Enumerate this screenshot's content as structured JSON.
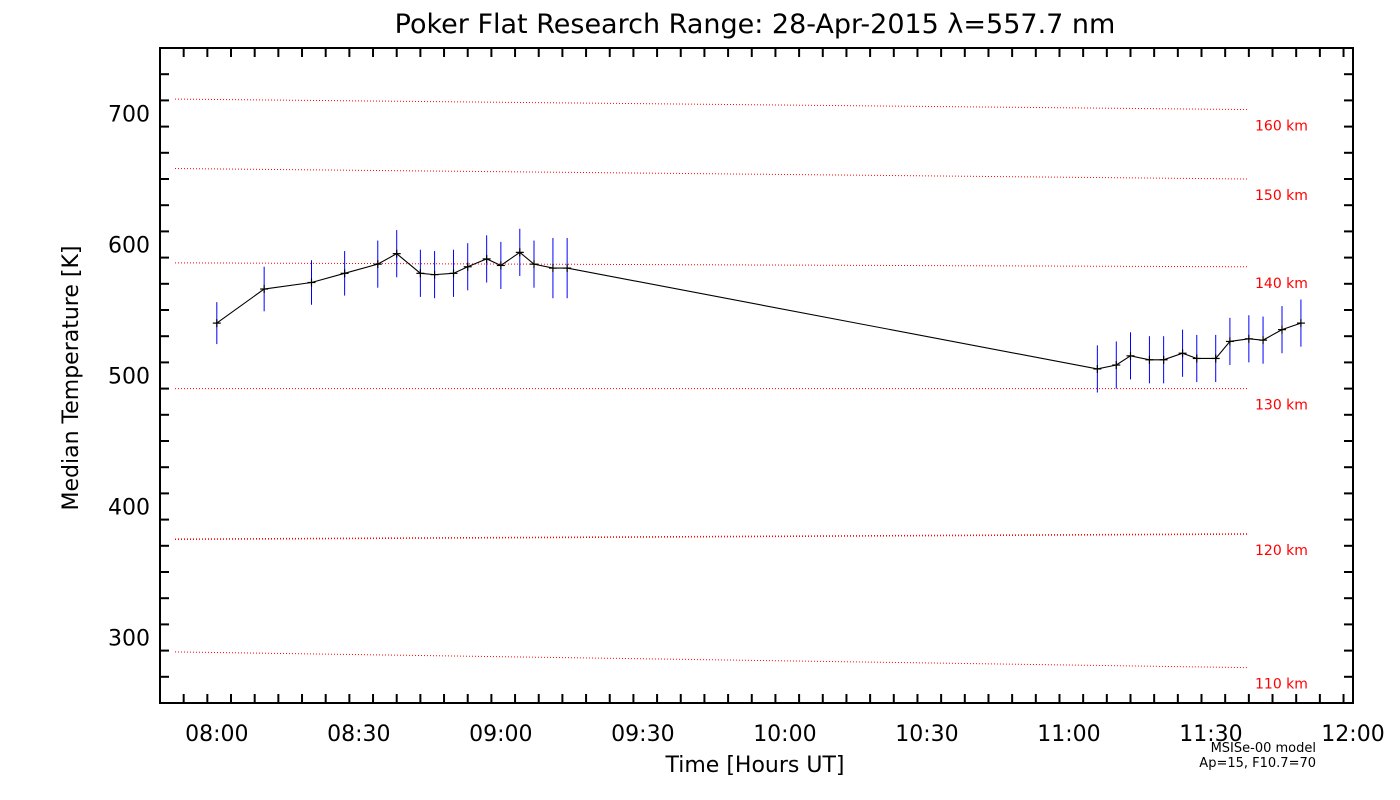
{
  "chart_data": {
    "type": "line",
    "title": "Poker Flat Research Range: 28-Apr-2015 λ=557.7 nm",
    "xlabel": "Time [Hours UT]",
    "ylabel": "Median Temperature [K]",
    "xlim": [
      "07:48",
      "12:00"
    ],
    "ylim": [
      250,
      750
    ],
    "xticks": [
      "08:00",
      "08:30",
      "09:00",
      "09:30",
      "10:00",
      "10:30",
      "11:00",
      "11:30",
      "12:00"
    ],
    "yticks": [
      300,
      400,
      500,
      600,
      700
    ],
    "grid": false,
    "line_color": "#000000",
    "errorbar_color": "#0000ff",
    "reference_color": "#ff0000",
    "series": [
      {
        "points": [
          {
            "x": "08:00",
            "y": 540,
            "err": 16
          },
          {
            "x": "08:10",
            "y": 566,
            "err": 17
          },
          {
            "x": "08:20",
            "y": 571,
            "err": 17
          },
          {
            "x": "08:27",
            "y": 578,
            "err": 17
          },
          {
            "x": "08:34",
            "y": 585,
            "err": 18
          },
          {
            "x": "08:38",
            "y": 593,
            "err": 18
          },
          {
            "x": "08:43",
            "y": 578,
            "err": 18
          },
          {
            "x": "08:46",
            "y": 577,
            "err": 18
          },
          {
            "x": "08:50",
            "y": 578,
            "err": 18
          },
          {
            "x": "08:53",
            "y": 583,
            "err": 18
          },
          {
            "x": "08:57",
            "y": 589,
            "err": 18
          },
          {
            "x": "09:00",
            "y": 584,
            "err": 18
          },
          {
            "x": "09:04",
            "y": 594,
            "err": 18
          },
          {
            "x": "09:07",
            "y": 585,
            "err": 18
          },
          {
            "x": "09:11",
            "y": 582,
            "err": 23
          },
          {
            "x": "09:14",
            "y": 582,
            "err": 23
          },
          {
            "x": "11:06",
            "y": 505,
            "err": 18
          },
          {
            "x": "11:10",
            "y": 508,
            "err": 18
          },
          {
            "x": "11:13",
            "y": 515,
            "err": 18
          },
          {
            "x": "11:17",
            "y": 512,
            "err": 18
          },
          {
            "x": "11:20",
            "y": 512,
            "err": 18
          },
          {
            "x": "11:24",
            "y": 517,
            "err": 18
          },
          {
            "x": "11:27",
            "y": 513,
            "err": 18
          },
          {
            "x": "11:31",
            "y": 513,
            "err": 18
          },
          {
            "x": "11:34",
            "y": 526,
            "err": 18
          },
          {
            "x": "11:38",
            "y": 528,
            "err": 18
          },
          {
            "x": "11:41",
            "y": 527,
            "err": 18
          },
          {
            "x": "11:45",
            "y": 535,
            "err": 18
          },
          {
            "x": "11:49",
            "y": 540,
            "err": 18
          }
        ]
      }
    ],
    "reference_lines": [
      {
        "label": "160 km",
        "start": 711,
        "end": 703
      },
      {
        "label": "150 km",
        "start": 658,
        "end": 650
      },
      {
        "label": "140 km",
        "start": 586,
        "end": 583
      },
      {
        "label": "130 km",
        "start": 490,
        "end": 490
      },
      {
        "label": "120 km",
        "start": 375,
        "end": 379
      },
      {
        "label": "110 km",
        "start": 289,
        "end": 277
      }
    ],
    "annotations": [
      "MSISe-00 model",
      "Ap=15, F10.7=70"
    ]
  }
}
